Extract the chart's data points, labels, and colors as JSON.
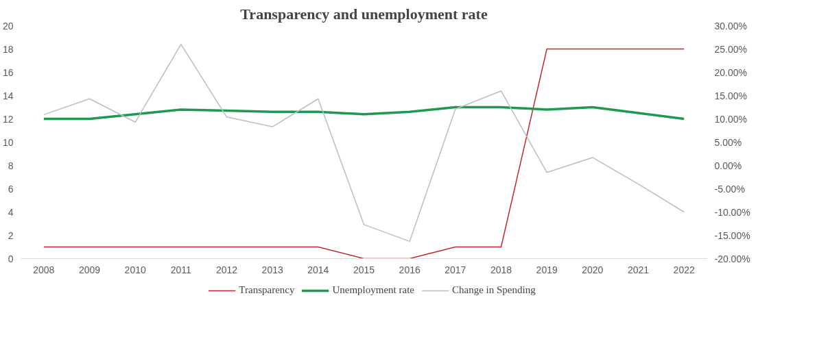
{
  "chart_data": {
    "type": "line",
    "title": "Transparency and unemployment rate",
    "categories": [
      "2008",
      "2009",
      "2010",
      "2011",
      "2012",
      "2013",
      "2014",
      "2015",
      "2016",
      "2017",
      "2018",
      "2019",
      "2020",
      "2021",
      "2022"
    ],
    "series": [
      {
        "name": "Transparency",
        "color": "#c0282d",
        "values": [
          1,
          1,
          1,
          1,
          1,
          1,
          1,
          0,
          0,
          1,
          1,
          18,
          18,
          18,
          18
        ]
      },
      {
        "name": "Unemployment rate",
        "color": "#1e9a50",
        "values": [
          12,
          12,
          12.4,
          12.8,
          12.7,
          12.6,
          12.6,
          12.4,
          12.6,
          13,
          13,
          12.8,
          13,
          12.5,
          12
        ]
      },
      {
        "name": "Change in Spending",
        "color": "#bdbdbd",
        "axis": "y2",
        "values": [
          10.9,
          14.3,
          9.3,
          26,
          10.4,
          8.3,
          14.3,
          -12.7,
          -16.3,
          12.1,
          16,
          -1.5,
          1.7,
          -4,
          -10
        ]
      }
    ],
    "ylim": [
      0,
      20
    ],
    "yticks": [
      0,
      2,
      4,
      6,
      8,
      10,
      12,
      14,
      16,
      18,
      20
    ],
    "y2lim": [
      -20,
      30
    ],
    "y2ticks": [
      {
        "value": -20,
        "label": "-20.00%"
      },
      {
        "value": -15,
        "label": "-15.00%"
      },
      {
        "value": -10,
        "label": "-10.00%"
      },
      {
        "value": -5,
        "label": "-5.00%"
      },
      {
        "value": 0,
        "label": "0.00%"
      },
      {
        "value": 5,
        "label": "5.00%"
      },
      {
        "value": 10,
        "label": "10.00%"
      },
      {
        "value": 15,
        "label": "15.00%"
      },
      {
        "value": 20,
        "label": "20.00%"
      },
      {
        "value": 25,
        "label": "25.00%"
      },
      {
        "value": 30,
        "label": "30.00%"
      }
    ],
    "grid": false,
    "legend": "bottom",
    "marker": "none",
    "line_style": "solid"
  }
}
